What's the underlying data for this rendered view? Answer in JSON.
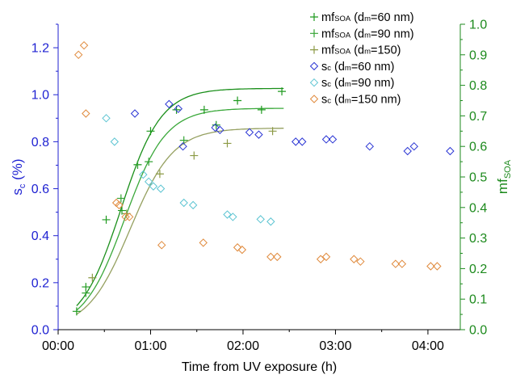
{
  "chart_data": {
    "type": "scatter",
    "xlabel": "Time from UV exposure (h)",
    "ylabel_left": {
      "main": "s",
      "sub": "c",
      "suffix": " (%)"
    },
    "ylabel_right": {
      "main": "mf",
      "sub": "SOA"
    },
    "xlim_hours": [
      0,
      4.35
    ],
    "ylim_left": [
      0,
      1.3
    ],
    "ylim_right": [
      0,
      1.0
    ],
    "x_ticks": [
      {
        "value": 0,
        "label": "00:00"
      },
      {
        "value": 1,
        "label": "01:00"
      },
      {
        "value": 2,
        "label": "02:00"
      },
      {
        "value": 3,
        "label": "03:00"
      },
      {
        "value": 4,
        "label": "04:00"
      }
    ],
    "y_ticks_left": [
      "0.0",
      "0.2",
      "0.4",
      "0.6",
      "0.8",
      "1.0",
      "1.2"
    ],
    "y_ticks_right": [
      "0.0",
      "0.1",
      "0.2",
      "0.3",
      "0.4",
      "0.5",
      "0.6",
      "0.7",
      "0.8",
      "0.9",
      "1.0"
    ],
    "colors": {
      "left_axis": "#1f22d2",
      "right_axis": "#1d8a1d"
    },
    "legend_position": "top-right",
    "series": [
      {
        "legend": {
          "main": "mf",
          "sub": "SOA",
          "paren_pre": " (d",
          "paren_sub": "m",
          "paren_post": "=60 nm)"
        },
        "axis": "right",
        "marker": "plus",
        "color": "#1e9a1e",
        "x": [
          0.2,
          0.3,
          0.52,
          0.69,
          0.86,
          1.0,
          1.28,
          1.58,
          1.71,
          1.94,
          2.2,
          2.42
        ],
        "y": [
          0.06,
          0.14,
          0.36,
          0.39,
          0.54,
          0.65,
          0.72,
          0.72,
          0.67,
          0.75,
          0.72,
          0.78
        ]
      },
      {
        "legend": {
          "main": "mf",
          "sub": "SOA",
          "paren_pre": " (d",
          "paren_sub": "m",
          "paren_post": "=90 nm)"
        },
        "axis": "right",
        "marker": "plus",
        "color": "#33a333",
        "x": [
          0.3,
          0.68,
          0.86,
          0.98,
          1.36
        ],
        "y": [
          0.12,
          0.43,
          0.54,
          0.55,
          0.62
        ]
      },
      {
        "legend": {
          "main": "mf",
          "sub": "SOA",
          "paren_pre": " (d",
          "paren_sub": "m",
          "paren_post": "=150)"
        },
        "axis": "right",
        "marker": "plus",
        "color": "#8c9a45",
        "x": [
          0.37,
          0.74,
          1.1,
          1.47,
          1.83,
          2.32
        ],
        "y": [
          0.17,
          0.38,
          0.51,
          0.57,
          0.61,
          0.65
        ]
      },
      {
        "legend": {
          "main": "s",
          "sub": "c",
          "paren_pre": " (d",
          "paren_sub": "m",
          "paren_post": "=60 nm)"
        },
        "axis": "left",
        "marker": "diamond",
        "color": "#2a35d4",
        "x": [
          0.83,
          1.2,
          1.3,
          1.35,
          1.7,
          1.75,
          2.07,
          2.17,
          2.57,
          2.64,
          2.9,
          2.97,
          3.37,
          3.78,
          3.85,
          4.24
        ],
        "y": [
          0.92,
          0.96,
          0.94,
          0.78,
          0.86,
          0.85,
          0.84,
          0.83,
          0.8,
          0.8,
          0.81,
          0.81,
          0.78,
          0.76,
          0.78,
          0.76
        ]
      },
      {
        "legend": {
          "main": "s",
          "sub": "c",
          "paren_pre": " (d",
          "paren_sub": "m",
          "paren_post": "=90 nm)"
        },
        "axis": "left",
        "marker": "diamond",
        "color": "#5cc4d2",
        "x": [
          0.52,
          0.61,
          0.92,
          0.98,
          1.03,
          1.11,
          1.36,
          1.46,
          1.83,
          1.89,
          2.19,
          2.3
        ],
        "y": [
          0.9,
          0.8,
          0.66,
          0.63,
          0.61,
          0.6,
          0.54,
          0.53,
          0.49,
          0.48,
          0.47,
          0.46
        ]
      },
      {
        "legend": {
          "main": "s",
          "sub": "c",
          "paren_pre": " (d",
          "paren_sub": "m",
          "paren_post": "=150 nm)"
        },
        "axis": "left",
        "marker": "diamond",
        "color": "#e08a3c",
        "x": [
          0.22,
          0.28,
          0.3,
          0.63,
          0.66,
          0.73,
          0.77,
          1.12,
          1.57,
          1.94,
          1.99,
          2.3,
          2.37,
          2.84,
          2.9,
          3.2,
          3.27,
          3.65,
          3.72,
          4.03,
          4.1
        ],
        "y": [
          1.17,
          1.21,
          0.92,
          0.54,
          0.53,
          0.48,
          0.48,
          0.36,
          0.37,
          0.35,
          0.34,
          0.31,
          0.31,
          0.3,
          0.31,
          0.3,
          0.29,
          0.28,
          0.28,
          0.27,
          0.27
        ]
      }
    ],
    "fit_curves": [
      {
        "axis": "right",
        "color": "#1a8f1a",
        "plateau": 0.79,
        "x_mid": 0.68,
        "rate": 4.6
      },
      {
        "axis": "right",
        "color": "#3aa83a",
        "plateau": 0.725,
        "x_mid": 0.72,
        "rate": 4.5
      },
      {
        "axis": "right",
        "color": "#95a060",
        "plateau": 0.66,
        "x_mid": 0.78,
        "rate": 4.3
      }
    ]
  }
}
